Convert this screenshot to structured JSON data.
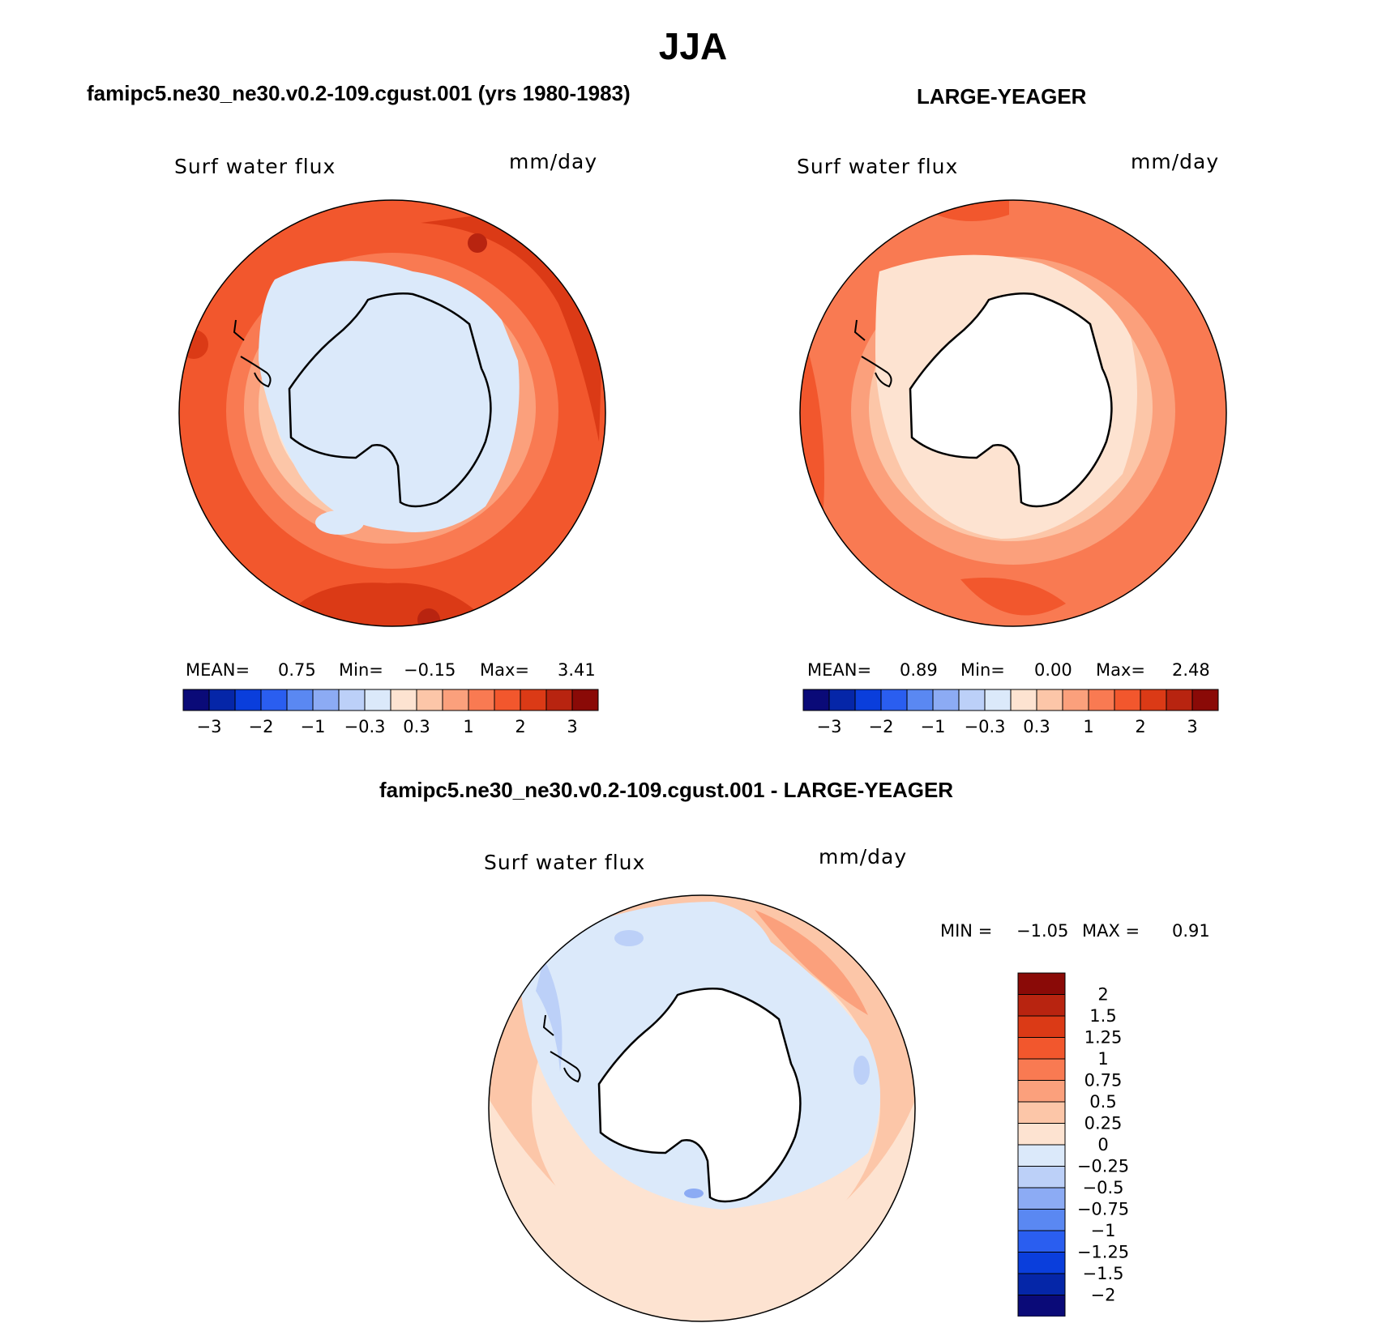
{
  "title": "JJA",
  "panels": [
    {
      "case_title": "famipc5.ne30_ne30.v0.2-109.cgust.001 (yrs 1980-1983)",
      "variable": "Surf water flux",
      "units": "mm/day",
      "stats": {
        "mean_label": "MEAN=",
        "mean": "0.75",
        "min_label": "Min=",
        "min": "−0.15",
        "max_label": "Max=",
        "max": "3.41"
      }
    },
    {
      "case_title": "LARGE-YEAGER",
      "variable": "Surf water flux",
      "units": "mm/day",
      "stats": {
        "mean_label": "MEAN=",
        "mean": "0.89",
        "min_label": "Min=",
        "min": "0.00",
        "max_label": "Max=",
        "max": "2.48"
      }
    }
  ],
  "abs_colorbar": {
    "colors": [
      "#0a0a78",
      "#0526a8",
      "#0a3edc",
      "#2a5ef0",
      "#5a88f2",
      "#8cabf4",
      "#bcd0f8",
      "#dbe9fa",
      "#fde3d1",
      "#fcc6a8",
      "#fba07c",
      "#f97a52",
      "#f2572d",
      "#db3a16",
      "#b82410",
      "#8a0a07"
    ],
    "labels": [
      "−3",
      "−2",
      "−1",
      "−0.3",
      "0.3",
      "1",
      "2",
      "3"
    ]
  },
  "diff_panel": {
    "case_title": "famipc5.ne30_ne30.v0.2-109.cgust.001 - LARGE-YEAGER",
    "variable": "Surf water flux",
    "units": "mm/day",
    "stats": {
      "min_label": "MIN =",
      "min": "−1.05",
      "max_label": "MAX =",
      "max": "0.91"
    }
  },
  "diff_colorbar": {
    "colors": [
      "#8a0a07",
      "#b82410",
      "#db3a16",
      "#f2572d",
      "#f97a52",
      "#fba07c",
      "#fcc6a8",
      "#fde3d1",
      "#dbe9fa",
      "#bcd0f8",
      "#8cabf4",
      "#5a88f2",
      "#2a5ef0",
      "#0a3edc",
      "#0526a8",
      "#0a0a78"
    ],
    "labels": [
      "2",
      "1.5",
      "1.25",
      "1",
      "0.75",
      "0.5",
      "0.25",
      "0",
      "−0.25",
      "−0.5",
      "−0.75",
      "−1",
      "−1.25",
      "−1.5",
      "−2"
    ]
  }
}
